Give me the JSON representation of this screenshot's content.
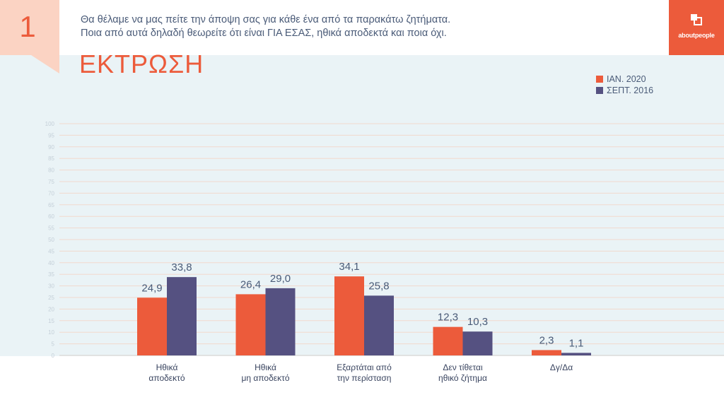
{
  "header": {
    "slide_number": "1",
    "question_line1": "Θα θέλαμε να μας πείτε την άποψη σας για κάθε ένα από τα παρακάτω ζητήματα.",
    "question_line2": "Ποια από αυτά δηλαδή θεωρείτε ότι είναι ΓΙΑ ΕΣΑΣ, ηθικά αποδεκτά και ποια όχι.",
    "brand_name_start": "about",
    "brand_name_end": "people"
  },
  "topic_title": "ΕΚΤΡΩΣΗ",
  "colors": {
    "accent": "#ec5b3b",
    "series_2016": "#555181",
    "panel": "#eaf3f6",
    "number_box": "#fbd3c3"
  },
  "chart_data": {
    "type": "bar",
    "categories": [
      [
        "Ηθικά",
        "αποδεκτό"
      ],
      [
        "Ηθικά",
        "μη αποδεκτό"
      ],
      [
        "Εξαρτάται από",
        "την περίσταση"
      ],
      [
        "Δεν τίθεται",
        "ηθικό ζήτημα"
      ],
      [
        "Δγ/Δα"
      ]
    ],
    "series": [
      {
        "name": "ΙΑΝ. 2020",
        "color": "#ec5b3b",
        "values": [
          24.9,
          26.4,
          34.1,
          12.3,
          2.3
        ],
        "labels": [
          "24,9",
          "26,4",
          "34,1",
          "12,3",
          "2,3"
        ]
      },
      {
        "name": "ΣΕΠΤ. 2016",
        "color": "#555181",
        "values": [
          33.8,
          29.0,
          25.8,
          10.3,
          1.1
        ],
        "labels": [
          "33,8",
          "29,0",
          "25,8",
          "10,3",
          "1,1"
        ]
      }
    ],
    "y_ticks": [
      "0",
      "5",
      "10",
      "15",
      "20",
      "25",
      "30",
      "35",
      "40",
      "45",
      "50",
      "55",
      "60",
      "65",
      "70",
      "75",
      "80",
      "85",
      "90",
      "95",
      "100"
    ],
    "ylim": [
      0,
      100
    ],
    "grid": true,
    "legend_position": "top-right"
  }
}
